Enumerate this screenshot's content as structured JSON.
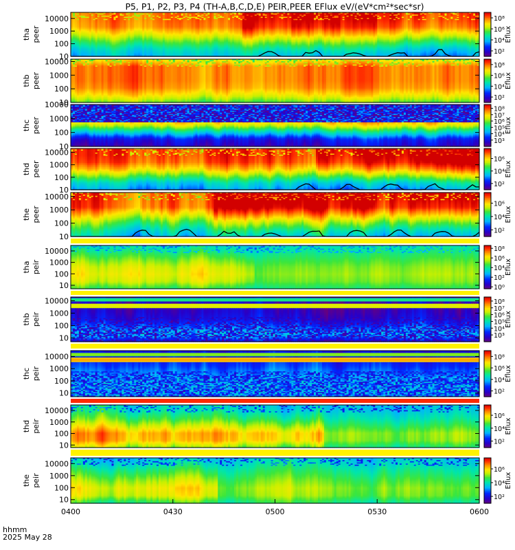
{
  "chart_data": {
    "type": "heatmap",
    "title": "P5, P1, P2, P3, P4 (TH-A,B,C,D,E) PEIR,PEER EFlux eV/(eV*cm²*sec*sr)",
    "xlabel": "hhmm",
    "date_label": "2025 May 28",
    "x_ticks": [
      "0400",
      "0430",
      "0500",
      "0530",
      "0600"
    ],
    "x_range_hhmm": [
      "0400",
      "0600"
    ],
    "y_scale": "log",
    "y_ticks": [
      "10",
      "100",
      "1000",
      "10000"
    ],
    "colorbar_label": "Eflux",
    "panels": [
      {
        "probe": "tha",
        "species": "peer",
        "ylabel_1": "tha",
        "ylabel_2": "peer",
        "yrange": [
          10,
          30000
        ],
        "colorbar_ticks": [
          "10⁸",
          "10⁶",
          "10⁴",
          "10²"
        ],
        "colorbar_exponents": [
          8,
          6,
          4,
          2
        ],
        "cbar_range": [
          1,
          9
        ],
        "profile": {
          "bg": 3.6,
          "hi": [
            7.8,
            7.8,
            7.6,
            6.6,
            5.4,
            4.4,
            3.8
          ],
          "bands": [],
          "spark_start": 0.42,
          "spark_change": 1.1
        },
        "bottom_curve": true,
        "curve_start": 0.46
      },
      {
        "probe": "thb",
        "species": "peer",
        "ylabel_1": "thb",
        "ylabel_2": "peer",
        "yrange": [
          10,
          15000
        ],
        "colorbar_ticks": [
          "10⁸",
          "10⁶",
          "10⁴",
          "10²"
        ],
        "colorbar_exponents": [
          8,
          6,
          4,
          2
        ],
        "cbar_range": [
          1,
          9
        ],
        "profile": {
          "bg": 5.2,
          "hi": [
            6.6,
            7.8,
            7.8,
            7.8,
            7.6,
            6.8,
            5.6
          ],
          "bands": [],
          "spark_start": 2,
          "spark_change": 0.3
        },
        "bottom_curve": false
      },
      {
        "probe": "thc",
        "species": "peer",
        "ylabel_1": "thc",
        "ylabel_2": "peer",
        "yrange": [
          10,
          10000
        ],
        "colorbar_ticks": [
          "10⁸",
          "10⁷",
          "10⁶",
          "10⁵",
          "10⁴",
          "10³"
        ],
        "colorbar_exponents": [
          8,
          7,
          6,
          5,
          4,
          3
        ],
        "cbar_range": [
          2,
          8.6
        ],
        "profile": {
          "bg": 2.5,
          "hi": [
            8.1,
            8.1,
            7.6,
            6.4,
            4.6,
            3.0,
            2.5
          ],
          "bands": [
            {
              "pos": 0.62,
              "width": 0.05,
              "level": 6.2
            }
          ],
          "spark_start": 2,
          "spark_change": 0.3,
          "noise_hi": true
        },
        "bottom_curve": false
      },
      {
        "probe": "thd",
        "species": "peer",
        "ylabel_1": "thd",
        "ylabel_2": "peer",
        "yrange": [
          10,
          20000
        ],
        "colorbar_ticks": [
          "10⁶",
          "10⁴",
          "10²"
        ],
        "colorbar_exponents": [
          6,
          4,
          2
        ],
        "cbar_range": [
          1,
          7.6
        ],
        "profile": {
          "bg": 3.0,
          "hi": [
            7.0,
            7.0,
            6.8,
            6.0,
            4.8,
            3.6,
            3.0
          ],
          "bands": [],
          "spark_start": 0.6,
          "spark_change": 1.0
        },
        "bottom_curve": true,
        "curve_start": 0.55
      },
      {
        "probe": "the",
        "species": "peer",
        "ylabel_1": "the",
        "ylabel_2": "peer",
        "yrange": [
          10,
          20000
        ],
        "colorbar_ticks": [
          "10⁶",
          "10⁴",
          "10²"
        ],
        "colorbar_exponents": [
          6,
          4,
          2
        ],
        "cbar_range": [
          1,
          7.6
        ],
        "profile": {
          "bg": 3.6,
          "hi": [
            7.0,
            7.0,
            6.9,
            6.0,
            5.0,
            4.2,
            3.6
          ],
          "bands": [],
          "spark_start": 0.35,
          "spark_change": 1.0
        },
        "bottom_curve": true,
        "curve_start": 0.15
      },
      {
        "probe": "tha",
        "species": "peir",
        "ylabel_1": "tha",
        "ylabel_2": "peir",
        "yrange": [
          5,
          30000
        ],
        "colorbar_ticks": [
          "10⁸",
          "10⁶",
          "10⁴",
          "10²",
          "10⁰"
        ],
        "colorbar_exponents": [
          8,
          6,
          4,
          2,
          0
        ],
        "cbar_range": [
          -0.4,
          8.6
        ],
        "profile": {
          "bg": 3.5,
          "hi": [
            3.6,
            4.4,
            5.2,
            5.9,
            6.2,
            5.8,
            4.6
          ],
          "bands": [],
          "spark_start": 2,
          "spark_change": 0.5,
          "fade_after": 0.45
        },
        "bottom_curve": false
      },
      {
        "probe": "thb",
        "species": "peir",
        "ylabel_1": "thb",
        "ylabel_2": "peir",
        "yrange": [
          5,
          20000
        ],
        "colorbar_ticks": [
          "10⁸",
          "10⁷",
          "10⁶",
          "10⁵",
          "10⁴",
          "10³"
        ],
        "colorbar_exponents": [
          8,
          7,
          6,
          5,
          4,
          3
        ],
        "cbar_range": [
          2,
          8.6
        ],
        "profile": {
          "bg": 2.6,
          "hi": [
            2.6,
            2.6,
            2.7,
            3.0,
            3.8,
            5.0,
            2.8
          ],
          "bands": [
            {
              "pos": 0.8,
              "width": 0.05,
              "level": 6.8
            },
            {
              "pos": 0.93,
              "width": 0.04,
              "level": 5.4
            }
          ],
          "spark_start": 2,
          "spark_change": 0.5,
          "noise_lo": true
        },
        "bottom_curve": false
      },
      {
        "probe": "thc",
        "species": "peir",
        "ylabel_1": "thc",
        "ylabel_2": "peir",
        "yrange": [
          5,
          30000
        ],
        "colorbar_ticks": [
          "10⁸",
          "10⁶",
          "10⁴",
          "10²"
        ],
        "colorbar_exponents": [
          8,
          6,
          4,
          2
        ],
        "cbar_range": [
          1,
          9
        ],
        "profile": {
          "bg": 2.2,
          "hi": [
            2.2,
            2.4,
            2.8,
            3.4,
            4.4,
            5.4,
            4.0
          ],
          "bands": [
            {
              "pos": 0.8,
              "width": 0.05,
              "level": 7.6
            },
            {
              "pos": 0.92,
              "width": 0.04,
              "level": 6.0
            }
          ],
          "spark_start": 2,
          "spark_change": 0.5,
          "noise_lo": true
        },
        "bottom_curve": false
      },
      {
        "probe": "thd",
        "species": "peir",
        "ylabel_1": "thd",
        "ylabel_2": "peir",
        "yrange": [
          6,
          30000
        ],
        "colorbar_ticks": [
          "10⁶",
          "10⁴",
          "10²"
        ],
        "colorbar_exponents": [
          6,
          4,
          2
        ],
        "cbar_range": [
          1,
          7.6
        ],
        "profile": {
          "bg": 3.5,
          "hi": [
            3.6,
            4.0,
            4.6,
            5.4,
            6.2,
            6.1,
            5.0
          ],
          "bands": [],
          "spark_start": 2,
          "spark_change": 0.5,
          "fade_after": 0.62
        },
        "bottom_curve": false
      },
      {
        "probe": "the",
        "species": "peir",
        "ylabel_1": "the",
        "ylabel_2": "peir",
        "yrange": [
          5,
          30000
        ],
        "colorbar_ticks": [
          "10⁶",
          "10⁴",
          "10²"
        ],
        "colorbar_exponents": [
          6,
          4,
          2
        ],
        "cbar_range": [
          1,
          7.6
        ],
        "profile": {
          "bg": 3.3,
          "hi": [
            3.6,
            4.2,
            4.8,
            5.4,
            5.9,
            5.7,
            4.6
          ],
          "bands": [],
          "spark_start": 2,
          "spark_change": 0.5,
          "fade_after": 0.36
        },
        "bottom_curve": false
      }
    ]
  }
}
